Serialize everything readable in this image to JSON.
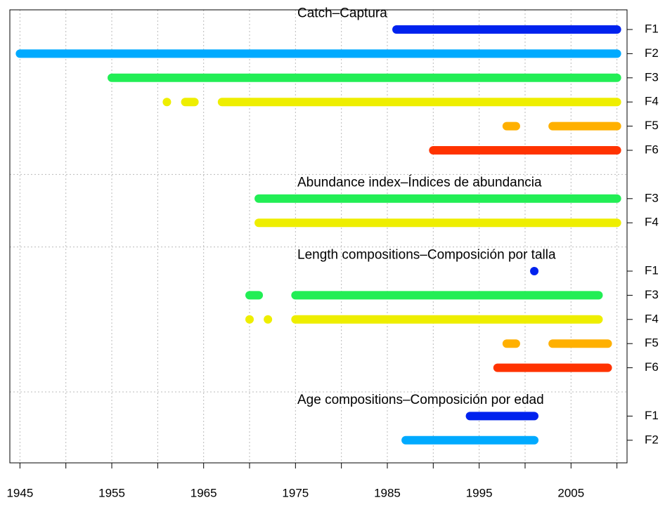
{
  "chart_data": {
    "type": "timeline",
    "xlim": [
      1943.9,
      2011.1
    ],
    "xticks": [
      1945,
      1955,
      1965,
      1975,
      1985,
      1995,
      2005
    ],
    "xminor_ticks": [
      1950,
      1960,
      1970,
      1980,
      1990,
      2000,
      2010
    ],
    "grid": true,
    "groups": [
      {
        "title": "Catch–Captura",
        "rows": [
          {
            "label": "F1",
            "color": "#0022ee",
            "segments": [
              [
                1986,
                2010
              ]
            ]
          },
          {
            "label": "F2",
            "color": "#00aaff",
            "segments": [
              [
                1945,
                2010
              ]
            ]
          },
          {
            "label": "F3",
            "color": "#22ee55",
            "segments": [
              [
                1955,
                2010
              ]
            ]
          },
          {
            "label": "F4",
            "color": "#eeee00",
            "segments": [
              [
                1961,
                1961
              ],
              [
                1963,
                1964
              ],
              [
                1967,
                2010
              ]
            ]
          },
          {
            "label": "F5",
            "color": "#ffb000",
            "segments": [
              [
                1998,
                1999
              ],
              [
                2003,
                2010
              ]
            ]
          },
          {
            "label": "F6",
            "color": "#ff3300",
            "segments": [
              [
                1990,
                2010
              ]
            ]
          }
        ]
      },
      {
        "title": "Abundance index–Índices de abundancia",
        "rows": [
          {
            "label": "F3",
            "color": "#22ee55",
            "segments": [
              [
                1971,
                2010
              ]
            ]
          },
          {
            "label": "F4",
            "color": "#eeee00",
            "segments": [
              [
                1971,
                2010
              ]
            ]
          }
        ]
      },
      {
        "title": "Length compositions–Composición por talla",
        "rows": [
          {
            "label": "F1",
            "color": "#0022ee",
            "segments": [
              [
                2001,
                2001
              ]
            ]
          },
          {
            "label": "F3",
            "color": "#22ee55",
            "segments": [
              [
                1970,
                1971
              ],
              [
                1975,
                2008
              ]
            ]
          },
          {
            "label": "F4",
            "color": "#eeee00",
            "segments": [
              [
                1970,
                1970
              ],
              [
                1972,
                1972
              ],
              [
                1975,
                2008
              ]
            ]
          },
          {
            "label": "F5",
            "color": "#ffb000",
            "segments": [
              [
                1998,
                1999
              ],
              [
                2003,
                2009
              ]
            ]
          },
          {
            "label": "F6",
            "color": "#ff3300",
            "segments": [
              [
                1997,
                2009
              ]
            ]
          }
        ]
      },
      {
        "title": "Age compositions–Composición por edad",
        "rows": [
          {
            "label": "F1",
            "color": "#0022ee",
            "segments": [
              [
                1994,
                2001
              ]
            ]
          },
          {
            "label": "F2",
            "color": "#00aaff",
            "segments": [
              [
                1987,
                2001
              ]
            ]
          }
        ]
      }
    ]
  }
}
